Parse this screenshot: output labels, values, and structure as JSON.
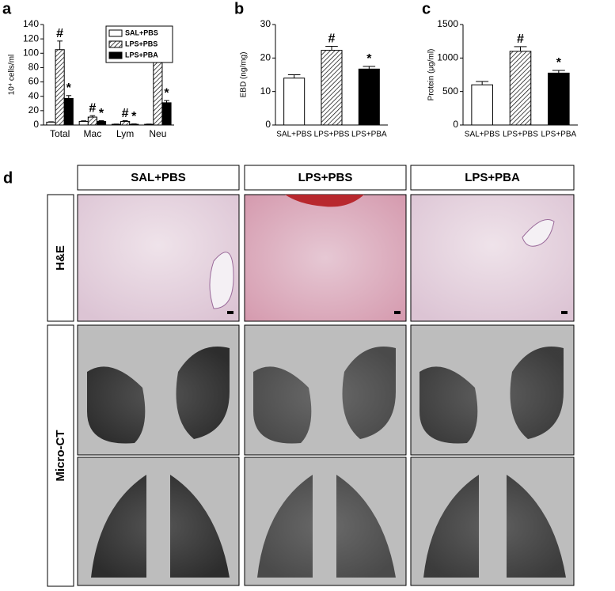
{
  "chart_data": [
    {
      "panel": "a",
      "type": "bar",
      "ylabel": "10⁴ cells/ml",
      "categories": [
        "Total",
        "Mac",
        "Lym",
        "Neu"
      ],
      "series": [
        {
          "name": "SAL+PBS",
          "color": "#ffffff",
          "values": [
            4,
            5,
            1,
            1
          ],
          "errors": [
            0.5,
            0.8,
            0.3,
            0.3
          ]
        },
        {
          "name": "LPS+PBS",
          "color": "#ffffff",
          "hatch": true,
          "values": [
            105,
            11,
            5,
            90
          ],
          "errors": [
            12,
            2,
            1,
            9
          ],
          "marker": "#"
        },
        {
          "name": "LPS+PBA",
          "color": "#000000",
          "values": [
            37,
            5,
            1,
            31
          ],
          "errors": [
            4,
            1,
            0.5,
            3
          ],
          "marker": "*"
        }
      ],
      "ylim": [
        0,
        140
      ],
      "yticks": [
        0,
        20,
        40,
        60,
        80,
        100,
        120,
        140
      ],
      "legend": "upper right"
    },
    {
      "panel": "b",
      "type": "bar",
      "ylabel": "EBD (ng/mg)",
      "categories": [
        "SAL+PBS",
        "LPS+PBS",
        "LPS+PBA"
      ],
      "values": [
        14,
        22.3,
        16.7
      ],
      "errors": [
        1,
        1.2,
        0.8
      ],
      "colors": [
        "#ffffff",
        "#ffffff",
        "#000000"
      ],
      "hatched": [
        false,
        true,
        false
      ],
      "markers": [
        null,
        "#",
        "*"
      ],
      "ylim": [
        0,
        30
      ],
      "yticks": [
        0,
        10,
        20,
        30
      ]
    },
    {
      "panel": "c",
      "type": "bar",
      "ylabel": "Protein (μg/ml)",
      "categories": [
        "SAL+PBS",
        "LPS+PBS",
        "LPS+PBA"
      ],
      "values": [
        600,
        1100,
        775
      ],
      "errors": [
        50,
        70,
        40
      ],
      "colors": [
        "#ffffff",
        "#ffffff",
        "#000000"
      ],
      "hatched": [
        false,
        true,
        false
      ],
      "markers": [
        null,
        "#",
        "*"
      ],
      "ylim": [
        0,
        1500
      ],
      "yticks": [
        0,
        500,
        1000,
        1500
      ]
    }
  ],
  "images": {
    "panel": "d",
    "columns": [
      "SAL+PBS",
      "LPS+PBS",
      "LPS+PBA"
    ],
    "rows": [
      "H&E",
      "Micro-CT"
    ]
  }
}
